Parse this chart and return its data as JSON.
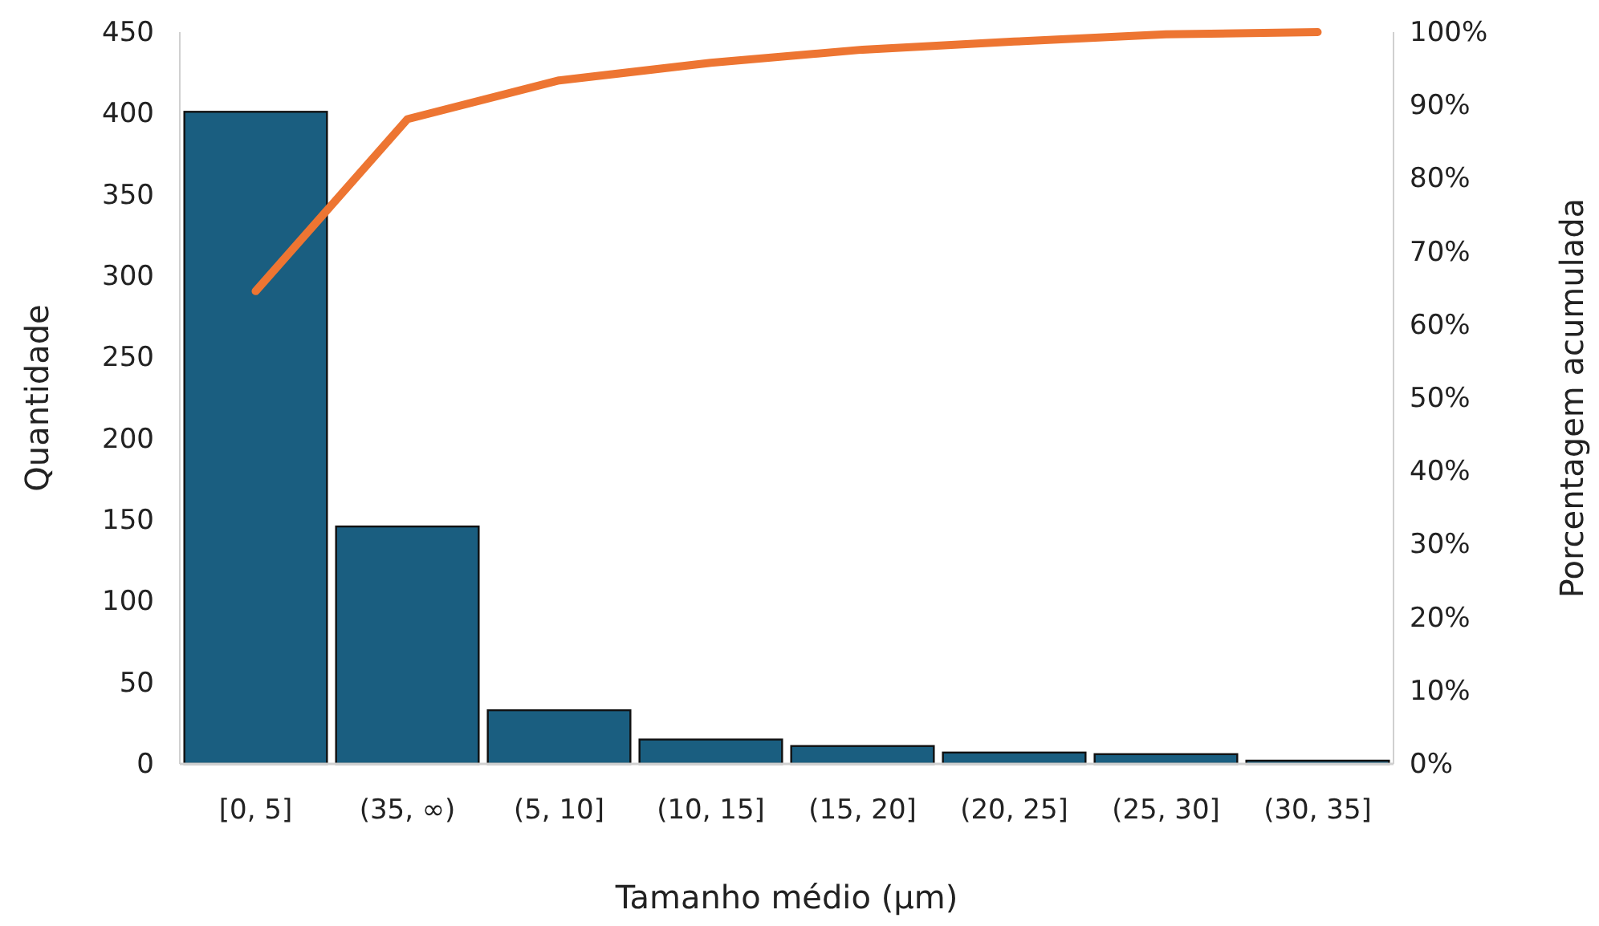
{
  "chart_data": {
    "type": "bar",
    "xlabel": "Tamanho médio (µm)",
    "ylabel": "Quantidade",
    "y2label": "Porcentagem acumulada",
    "categories": [
      "[0, 5]",
      "(35, ∞)",
      "(5, 10]",
      "(10, 15]",
      "(15, 20]",
      "(20, 25]",
      "(25, 30]",
      "(30, 35]"
    ],
    "series": [
      {
        "color": "#1a5e80",
        "values": [
          401,
          146,
          33,
          15,
          11,
          7,
          6,
          2
        ]
      },
      {
        "type": "line",
        "axis": "y2",
        "color": "#ed7532",
        "values": [
          64.6,
          88.1,
          93.4,
          95.8,
          97.6,
          98.7,
          99.7,
          100
        ]
      }
    ],
    "ylim": [
      0,
      450
    ],
    "yticks": [
      0,
      50,
      100,
      150,
      200,
      250,
      300,
      350,
      400,
      450
    ],
    "y2lim": [
      0,
      100
    ],
    "y2ticks": [
      {
        "value": 0,
        "label": "0%"
      },
      {
        "value": 10,
        "label": "10%"
      },
      {
        "value": 20,
        "label": "20%"
      },
      {
        "value": 30,
        "label": "30%"
      },
      {
        "value": 40,
        "label": "40%"
      },
      {
        "value": 50,
        "label": "50%"
      },
      {
        "value": 60,
        "label": "60%"
      },
      {
        "value": 70,
        "label": "70%"
      },
      {
        "value": 80,
        "label": "80%"
      },
      {
        "value": 90,
        "label": "90%"
      },
      {
        "value": 100,
        "label": "100%"
      }
    ],
    "marker": "none",
    "line_style": "solid"
  }
}
